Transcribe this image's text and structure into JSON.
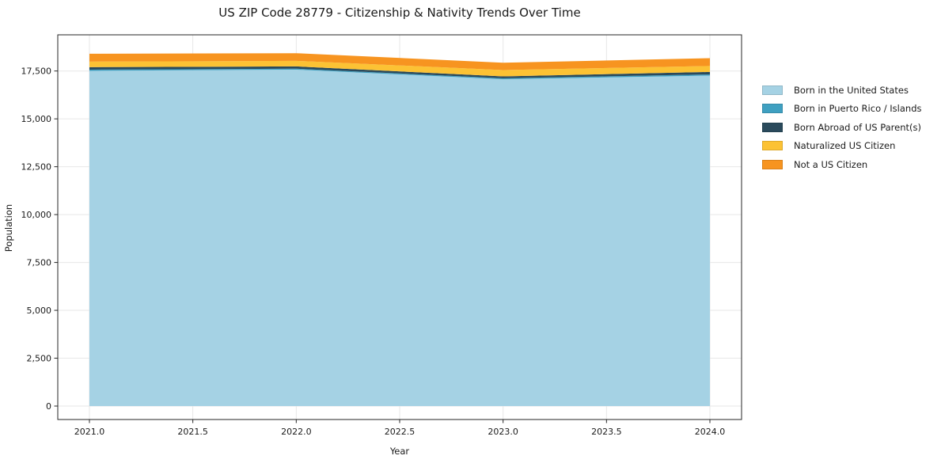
{
  "chart_data": {
    "type": "area",
    "stacked": true,
    "title": "US ZIP Code 28779 - Citizenship & Nativity Trends Over Time",
    "xlabel": "Year",
    "ylabel": "Population",
    "x": [
      2021,
      2022,
      2023,
      2024
    ],
    "series": [
      {
        "name": "Born in the United States",
        "color": "#A5D2E4",
        "values": [
          17510,
          17570,
          17070,
          17260
        ]
      },
      {
        "name": "Born in Puerto Rico / Islands",
        "color": "#3FA0C1",
        "values": [
          60,
          50,
          50,
          60
        ]
      },
      {
        "name": "Born Abroad of US Parent(s)",
        "color": "#2A4A5C",
        "values": [
          130,
          120,
          100,
          130
        ]
      },
      {
        "name": "Naturalized US Citizen",
        "color": "#FCC234",
        "values": [
          290,
          290,
          330,
          310
        ]
      },
      {
        "name": "Not a US Citizen",
        "color": "#F79420",
        "values": [
          410,
          400,
          380,
          410
        ]
      }
    ],
    "xlim": [
      2020.847,
      2024.153
    ],
    "ylim": [
      -703,
      19389
    ],
    "xticks": {
      "values": [
        2021.0,
        2021.5,
        2022.0,
        2022.5,
        2023.0,
        2023.5,
        2024.0
      ],
      "labels": [
        "2021.0",
        "2021.5",
        "2022.0",
        "2022.5",
        "2023.0",
        "2023.5",
        "2024.0"
      ]
    },
    "yticks": {
      "values": [
        0,
        2500,
        5000,
        7500,
        10000,
        12500,
        15000,
        17500
      ],
      "labels": [
        "0",
        "2,500",
        "5,000",
        "7,500",
        "10,000",
        "12,500",
        "15,000",
        "17,500"
      ]
    },
    "grid": true,
    "legend_position": "right",
    "colors": {
      "background": "#ffffff",
      "spine": "#262626",
      "grid": "#e7e7e7",
      "text": "#1a1a1a"
    }
  }
}
